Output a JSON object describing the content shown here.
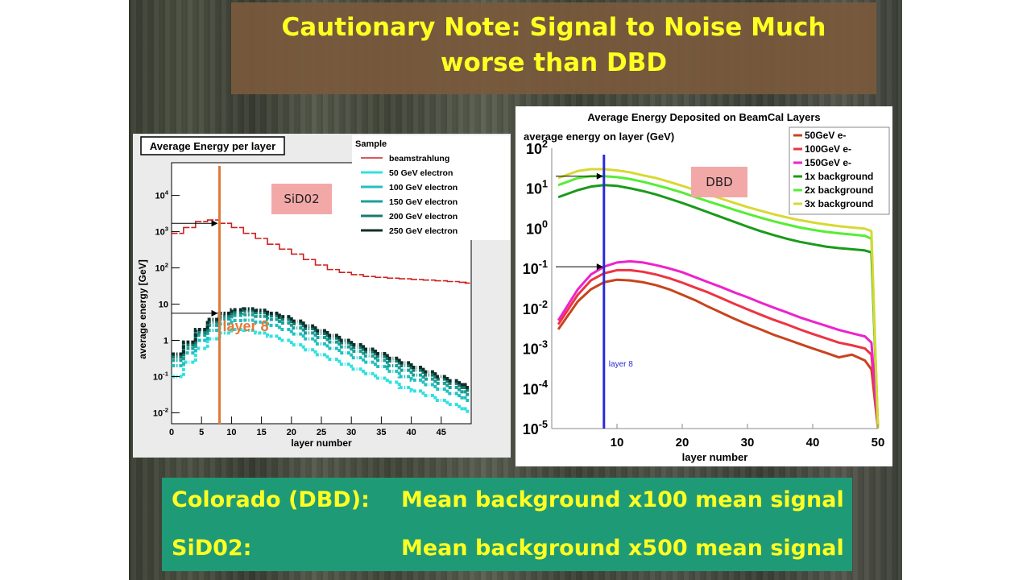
{
  "slide": {
    "title_line1": "Cautionary Note: Signal to Noise Much",
    "title_line2": "worse than DBD",
    "label_sid": "SiD02",
    "label_dbd": "DBD",
    "notes": [
      {
        "left": "Colorado (DBD):",
        "right": "Mean background x100 mean signal"
      },
      {
        "left": "SiD02:",
        "right": "Mean background x500 mean signal"
      }
    ],
    "colors": {
      "title_text": "#ffff22",
      "title_box": "#7a5a3c",
      "note_box": "#1e9a77",
      "tag_bg": "#f3a8a8"
    }
  },
  "chart_data": [
    {
      "type": "line",
      "title": "Average Energy per layer",
      "xlabel": "layer number",
      "ylabel": "average energy [GeV]",
      "xlim": [
        0,
        50
      ],
      "ylim": [
        0.005,
        80000
      ],
      "yscale": "log",
      "x_ticks": [
        "0",
        "5",
        "10",
        "15",
        "20",
        "25",
        "30",
        "35",
        "40",
        "45"
      ],
      "y_ticks": [
        "10^-2",
        "10^-1",
        "1",
        "10",
        "10^2",
        "10^3",
        "10^4"
      ],
      "legend_title": "Sample",
      "legend_position": "top-right",
      "marker_layer": 8,
      "marker_label": "layer 8",
      "series": [
        {
          "name": "beamstrahlung",
          "color": "#cc2222",
          "x": [
            0,
            2,
            4,
            6,
            8,
            10,
            12,
            14,
            16,
            18,
            20,
            22,
            24,
            26,
            28,
            30,
            32,
            34,
            36,
            38,
            40,
            42,
            44,
            46,
            48,
            49
          ],
          "y": [
            900,
            1300,
            1900,
            2100,
            1700,
            1300,
            900,
            650,
            450,
            330,
            240,
            170,
            120,
            90,
            75,
            65,
            58,
            55,
            52,
            50,
            48,
            46,
            44,
            42,
            40,
            38
          ]
        },
        {
          "name": "50 GeV electron",
          "color": "#33e0e0",
          "x": [
            0,
            2,
            4,
            6,
            8,
            10,
            12,
            14,
            16,
            18,
            20,
            22,
            24,
            26,
            28,
            30,
            32,
            34,
            36,
            38,
            40,
            42,
            44,
            46,
            48,
            49
          ],
          "y": [
            0.1,
            0.25,
            0.6,
            1.1,
            1.6,
            2.0,
            1.9,
            1.6,
            1.3,
            1.0,
            0.75,
            0.55,
            0.4,
            0.3,
            0.22,
            0.16,
            0.12,
            0.09,
            0.07,
            0.05,
            0.04,
            0.03,
            0.022,
            0.017,
            0.013,
            0.011
          ]
        },
        {
          "name": "100 GeV electron",
          "color": "#22bfc0",
          "x": [
            0,
            2,
            4,
            6,
            8,
            10,
            12,
            14,
            16,
            18,
            20,
            22,
            24,
            26,
            28,
            30,
            32,
            34,
            36,
            38,
            40,
            42,
            44,
            46,
            48,
            49
          ],
          "y": [
            0.2,
            0.45,
            1.0,
            1.9,
            2.8,
            3.5,
            3.6,
            3.2,
            2.6,
            2.0,
            1.5,
            1.1,
            0.8,
            0.6,
            0.45,
            0.33,
            0.25,
            0.19,
            0.14,
            0.1,
            0.08,
            0.06,
            0.045,
            0.034,
            0.026,
            0.022
          ]
        },
        {
          "name": "150 GeV electron",
          "color": "#1aa09a",
          "x": [
            0,
            2,
            4,
            6,
            8,
            10,
            12,
            14,
            16,
            18,
            20,
            22,
            24,
            26,
            28,
            30,
            32,
            34,
            36,
            38,
            40,
            42,
            44,
            46,
            48,
            49
          ],
          "y": [
            0.28,
            0.6,
            1.4,
            2.6,
            3.9,
            4.9,
            5.1,
            4.6,
            3.8,
            3.0,
            2.2,
            1.6,
            1.2,
            0.9,
            0.66,
            0.5,
            0.37,
            0.28,
            0.2,
            0.15,
            0.11,
            0.085,
            0.065,
            0.05,
            0.038,
            0.032
          ]
        },
        {
          "name": "200 GeV electron",
          "color": "#167a6e",
          "x": [
            0,
            2,
            4,
            6,
            8,
            10,
            12,
            14,
            16,
            18,
            20,
            22,
            24,
            26,
            28,
            30,
            32,
            34,
            36,
            38,
            40,
            42,
            44,
            46,
            48,
            49
          ],
          "y": [
            0.35,
            0.75,
            1.7,
            3.2,
            4.8,
            6.0,
            6.4,
            5.8,
            4.8,
            3.8,
            2.9,
            2.1,
            1.55,
            1.15,
            0.85,
            0.64,
            0.48,
            0.36,
            0.27,
            0.2,
            0.15,
            0.11,
            0.085,
            0.065,
            0.05,
            0.042
          ]
        },
        {
          "name": "250 GeV electron",
          "color": "#0f2f2a",
          "x": [
            0,
            2,
            4,
            6,
            8,
            10,
            12,
            14,
            16,
            18,
            20,
            22,
            24,
            26,
            28,
            30,
            32,
            34,
            36,
            38,
            40,
            42,
            44,
            46,
            48,
            49
          ],
          "y": [
            0.42,
            0.9,
            2.0,
            3.8,
            5.6,
            7.0,
            7.4,
            6.8,
            5.6,
            4.5,
            3.4,
            2.5,
            1.85,
            1.37,
            1.0,
            0.76,
            0.57,
            0.43,
            0.32,
            0.24,
            0.18,
            0.135,
            0.1,
            0.077,
            0.06,
            0.05
          ]
        }
      ]
    },
    {
      "type": "line",
      "title": "Average Energy Deposited on BeamCal Layers",
      "xlabel": "layer number",
      "ylabel": "average energy on layer (GeV)",
      "xlim": [
        0,
        50
      ],
      "ylim": [
        1e-05,
        100
      ],
      "yscale": "log",
      "x_ticks": [
        "10",
        "20",
        "30",
        "40",
        "50"
      ],
      "y_ticks": [
        "10^2",
        "10^1",
        "10^0",
        "10^-1",
        "10^-2",
        "10^-3",
        "10^-4",
        "10^-5"
      ],
      "legend_position": "top-right",
      "marker_layer": 8,
      "marker_label": "layer 8",
      "series": [
        {
          "name": "50GeV e-",
          "color": "#c8441c",
          "x": [
            1,
            4,
            6,
            8,
            10,
            12,
            14,
            16,
            18,
            20,
            22,
            24,
            26,
            28,
            30,
            32,
            34,
            36,
            38,
            40,
            42,
            44,
            46,
            48,
            49,
            50
          ],
          "y": [
            0.003,
            0.015,
            0.03,
            0.045,
            0.052,
            0.05,
            0.045,
            0.038,
            0.03,
            0.022,
            0.016,
            0.011,
            0.0078,
            0.0055,
            0.004,
            0.003,
            0.0022,
            0.0017,
            0.0013,
            0.001,
            0.00078,
            0.0006,
            0.0007,
            0.0005,
            0.0003,
            1e-05
          ]
        },
        {
          "name": "100GeV e-",
          "color": "#ee3344",
          "x": [
            1,
            4,
            6,
            8,
            10,
            12,
            14,
            16,
            18,
            20,
            22,
            24,
            26,
            28,
            30,
            32,
            34,
            36,
            38,
            40,
            42,
            44,
            46,
            48,
            49,
            50
          ],
          "y": [
            0.004,
            0.022,
            0.05,
            0.075,
            0.09,
            0.09,
            0.082,
            0.07,
            0.057,
            0.044,
            0.033,
            0.025,
            0.018,
            0.013,
            0.0095,
            0.007,
            0.0052,
            0.004,
            0.003,
            0.0023,
            0.0018,
            0.0014,
            0.0012,
            0.001,
            0.0007,
            1e-05
          ]
        },
        {
          "name": "150GeV e-",
          "color": "#ee22cc",
          "x": [
            1,
            4,
            6,
            8,
            10,
            12,
            14,
            16,
            18,
            20,
            22,
            24,
            26,
            28,
            30,
            32,
            34,
            36,
            38,
            40,
            42,
            44,
            46,
            48,
            49,
            50
          ],
          "y": [
            0.005,
            0.03,
            0.07,
            0.11,
            0.14,
            0.15,
            0.14,
            0.12,
            0.1,
            0.08,
            0.06,
            0.045,
            0.034,
            0.025,
            0.019,
            0.014,
            0.0105,
            0.008,
            0.006,
            0.0047,
            0.0037,
            0.0029,
            0.0024,
            0.002,
            0.0014,
            1e-05
          ]
        },
        {
          "name": "1x background",
          "color": "#1a9a1a",
          "x": [
            1,
            4,
            6,
            8,
            10,
            12,
            14,
            16,
            18,
            20,
            22,
            24,
            26,
            28,
            30,
            32,
            34,
            36,
            38,
            40,
            42,
            44,
            46,
            48,
            49,
            50
          ],
          "y": [
            6,
            9,
            11,
            12,
            11.5,
            10,
            8.5,
            7,
            5.5,
            4.3,
            3.3,
            2.5,
            1.9,
            1.45,
            1.1,
            0.85,
            0.68,
            0.55,
            0.46,
            0.4,
            0.35,
            0.32,
            0.3,
            0.28,
            0.25,
            1e-05
          ]
        },
        {
          "name": "2x background",
          "color": "#55ee33",
          "x": [
            1,
            4,
            6,
            8,
            10,
            12,
            14,
            16,
            18,
            20,
            22,
            24,
            26,
            28,
            30,
            32,
            34,
            36,
            38,
            40,
            42,
            44,
            46,
            48,
            49,
            50
          ],
          "y": [
            12,
            18,
            20,
            20,
            19,
            17,
            14.5,
            12,
            9.8,
            7.8,
            6,
            4.7,
            3.7,
            2.9,
            2.3,
            1.85,
            1.5,
            1.25,
            1.05,
            0.92,
            0.82,
            0.75,
            0.7,
            0.65,
            0.55,
            1e-05
          ]
        },
        {
          "name": "3x background",
          "color": "#d8d833",
          "x": [
            1,
            4,
            6,
            8,
            10,
            12,
            14,
            16,
            18,
            20,
            22,
            24,
            26,
            28,
            30,
            32,
            34,
            36,
            38,
            40,
            42,
            44,
            46,
            48,
            49,
            50
          ],
          "y": [
            18,
            27,
            30,
            30,
            28,
            25,
            21,
            18,
            14.5,
            11.5,
            9,
            7,
            5.5,
            4.3,
            3.4,
            2.75,
            2.25,
            1.88,
            1.6,
            1.4,
            1.25,
            1.13,
            1.05,
            0.98,
            0.85,
            1e-05
          ]
        }
      ]
    }
  ]
}
